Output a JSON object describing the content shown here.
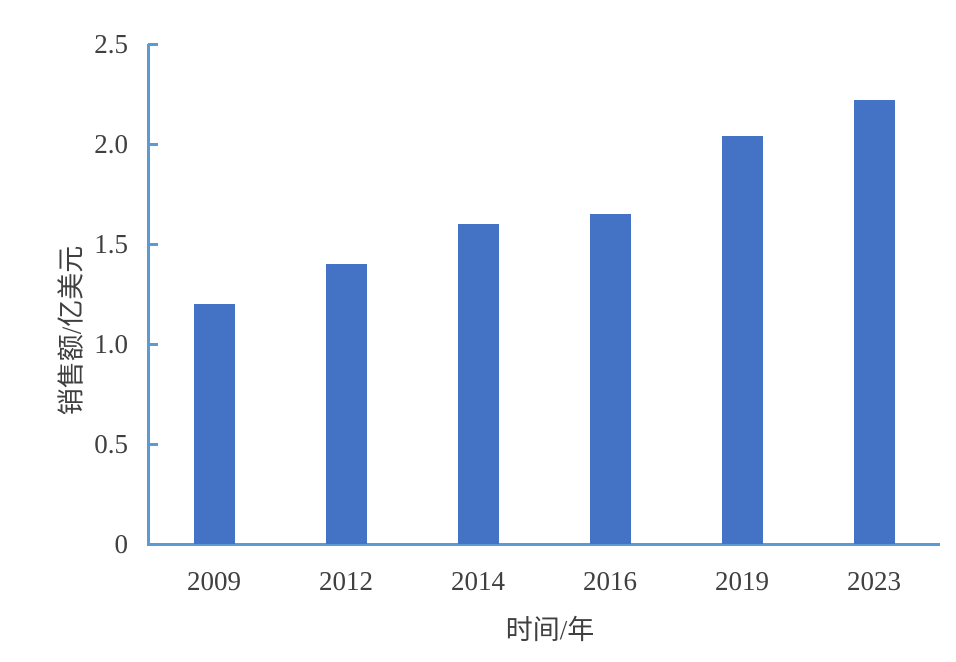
{
  "chart_data": {
    "type": "bar",
    "title": "",
    "categories": [
      "2009",
      "2012",
      "2014",
      "2016",
      "2019",
      "2023"
    ],
    "values": [
      1.2,
      1.4,
      1.6,
      1.65,
      2.04,
      2.22
    ],
    "series": [
      {
        "name": "销售额",
        "values": [
          1.2,
          1.4,
          1.6,
          1.65,
          2.04,
          2.22
        ]
      }
    ],
    "xlabel": "时间/年",
    "ylabel": "销售额/亿美元",
    "ylim": [
      0,
      2.5
    ],
    "yticks": [
      "0",
      "0.5",
      "1.0",
      "1.5",
      "2.0",
      "2.5"
    ],
    "grid": false,
    "legend": null
  },
  "colors": {
    "bar": "#4472C4",
    "axis": "#5B9BD5",
    "text": "#404040"
  }
}
